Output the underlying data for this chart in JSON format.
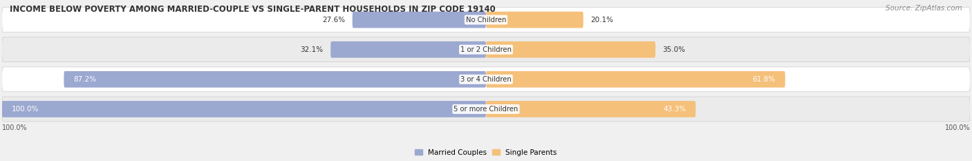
{
  "title": "INCOME BELOW POVERTY AMONG MARRIED-COUPLE VS SINGLE-PARENT HOUSEHOLDS IN ZIP CODE 19140",
  "source": "Source: ZipAtlas.com",
  "categories": [
    "No Children",
    "1 or 2 Children",
    "3 or 4 Children",
    "5 or more Children"
  ],
  "married_values": [
    27.6,
    32.1,
    87.2,
    100.0
  ],
  "single_values": [
    20.1,
    35.0,
    61.8,
    43.3
  ],
  "married_color": "#9BA8D0",
  "single_color": "#F5C07A",
  "title_fontsize": 8.5,
  "source_fontsize": 7.5,
  "label_fontsize": 7.5,
  "category_fontsize": 7.2,
  "max_value": 100.0,
  "axis_label_left": "100.0%",
  "axis_label_right": "100.0%",
  "legend_labels": [
    "Married Couples",
    "Single Parents"
  ],
  "background_color": "#F0F0F0",
  "row_bg_even": "#FFFFFF",
  "row_bg_odd": "#EBEBEB"
}
